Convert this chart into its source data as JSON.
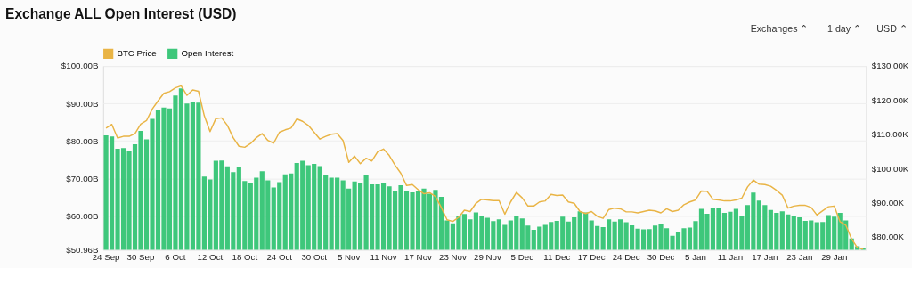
{
  "chart_data": {
    "type": "bar",
    "title": "Exchange ALL Open Interest (USD)",
    "annotations": [
      "Exchanges ⌃",
      "1 day ⌃",
      "USD ⌃"
    ],
    "categories": [
      "24 Sep",
      null,
      null,
      null,
      null,
      null,
      "30 Sep",
      null,
      null,
      null,
      null,
      null,
      "6 Oct",
      null,
      null,
      null,
      null,
      null,
      "12 Oct",
      null,
      null,
      null,
      null,
      null,
      "18 Oct",
      null,
      null,
      null,
      null,
      null,
      "24 Oct",
      null,
      null,
      null,
      null,
      null,
      "30 Oct",
      null,
      null,
      null,
      null,
      null,
      "5 Nov",
      null,
      null,
      null,
      null,
      null,
      "11 Nov",
      null,
      null,
      null,
      null,
      null,
      "17 Nov",
      null,
      null,
      null,
      null,
      null,
      "23 Nov",
      null,
      null,
      null,
      null,
      null,
      "29 Nov",
      null,
      null,
      null,
      null,
      null,
      "5 Dec",
      null,
      null,
      null,
      null,
      null,
      "11 Dec",
      null,
      null,
      null,
      null,
      null,
      "17 Dec",
      null,
      null,
      null,
      null,
      null,
      "24 Dec",
      null,
      null,
      null,
      null,
      null,
      "30 Dec",
      null,
      null,
      null,
      null,
      null,
      "5 Jan",
      null,
      null,
      null,
      null,
      null,
      "11 Jan",
      null,
      null,
      null,
      null,
      null,
      "17 Jan",
      null,
      null,
      null,
      null,
      null,
      "23 Jan",
      null,
      null,
      null,
      null,
      null,
      "29 Jan",
      null,
      null,
      null,
      null,
      null
    ],
    "series": [
      {
        "name": "BTC Price",
        "type": "line",
        "axis": "y2",
        "color": "#e9b445",
        "values": [
          111.8,
          112.9,
          108.9,
          109.4,
          109.4,
          110.2,
          113.0,
          114.0,
          117.4,
          119.8,
          122.0,
          122.5,
          123.6,
          124.2,
          121.4,
          123.0,
          122.6,
          115.4,
          110.8,
          114.6,
          114.8,
          112.6,
          109.0,
          106.5,
          106.2,
          107.3,
          109.0,
          110.2,
          108.2,
          107.4,
          110.6,
          111.3,
          111.8,
          114.5,
          113.8,
          112.6,
          110.6,
          108.6,
          109.4,
          110.0,
          110.2,
          108.2,
          101.8,
          103.6,
          101.4,
          103.0,
          102.2,
          104.9,
          105.7,
          103.8,
          101.0,
          98.6,
          95.0,
          95.3,
          93.8,
          92.6,
          92.9,
          91.8,
          88.6,
          85.0,
          84.5,
          85.7,
          87.8,
          87.4,
          89.8,
          91.0,
          90.8,
          90.6,
          90.6,
          86.6,
          90.2,
          93.0,
          91.4,
          89.0,
          89.0,
          90.2,
          90.5,
          92.4,
          92.1,
          92.2,
          90.2,
          89.8,
          87.4,
          86.8,
          87.4,
          86.0,
          85.4,
          88.0,
          88.4,
          88.2,
          87.3,
          87.3,
          87.0,
          87.4,
          87.8,
          87.6,
          87.0,
          88.2,
          87.4,
          87.8,
          89.4,
          90.2,
          90.8,
          93.4,
          93.3,
          91.0,
          90.8,
          90.5,
          90.5,
          90.8,
          91.3,
          94.6,
          96.6,
          95.4,
          95.3,
          94.8,
          93.6,
          92.2,
          88.4,
          89.0,
          89.2,
          89.2,
          88.6,
          86.4,
          87.6,
          88.8,
          89.0,
          84.4,
          83.4,
          79.4,
          76.8,
          76.4
        ]
      },
      {
        "name": "Open Interest",
        "type": "bar",
        "color": "#3ec77b",
        "values": [
          81.5,
          81.2,
          77.9,
          78.1,
          77.2,
          79.1,
          82.7,
          80.4,
          85.9,
          88.4,
          88.9,
          88.7,
          92.1,
          94.0,
          90.0,
          90.4,
          90.2,
          70.5,
          69.7,
          74.7,
          74.8,
          73.2,
          71.7,
          73.1,
          69.3,
          68.7,
          70.2,
          71.9,
          69.5,
          67.6,
          69.0,
          71.1,
          71.3,
          74.1,
          74.7,
          73.5,
          73.9,
          73.3,
          70.9,
          70.2,
          70.2,
          69.5,
          67.3,
          69.2,
          68.8,
          70.8,
          68.4,
          68.4,
          68.9,
          67.9,
          66.7,
          68.2,
          66.5,
          66.3,
          66.6,
          67.3,
          65.9,
          66.9,
          65.1,
          58.8,
          58.0,
          59.9,
          60.5,
          59.1,
          60.9,
          59.9,
          59.5,
          58.6,
          59.1,
          57.6,
          58.8,
          59.9,
          59.3,
          57.4,
          56.3,
          57.1,
          57.6,
          58.4,
          58.7,
          59.8,
          58.5,
          59.6,
          61.2,
          60.9,
          58.8,
          57.3,
          57.0,
          59.1,
          58.5,
          59.1,
          58.3,
          57.5,
          56.6,
          56.4,
          56.5,
          57.4,
          57.7,
          56.7,
          54.7,
          55.6,
          56.7,
          56.9,
          58.6,
          61.9,
          60.6,
          62.0,
          62.1,
          60.8,
          61.1,
          61.9,
          60.1,
          62.9,
          66.2,
          64.1,
          62.9,
          61.6,
          60.8,
          61.2,
          60.4,
          60.1,
          59.6,
          58.7,
          58.8,
          58.3,
          58.4,
          60.2,
          59.8,
          60.8,
          58.8,
          54.0,
          51.9,
          51.4
        ]
      }
    ],
    "ylim": [
      50.96,
      100
    ],
    "yticks": [
      {
        "value": 50.96,
        "label": "$50.96B"
      },
      {
        "value": 60,
        "label": "$60.00B"
      },
      {
        "value": 70,
        "label": "$70.00B"
      },
      {
        "value": 80,
        "label": "$80.00B"
      },
      {
        "value": 90,
        "label": "$90.00B"
      },
      {
        "value": 100,
        "label": "$100.00B"
      }
    ],
    "y2lim": [
      76.2,
      130
    ],
    "y2ticks": [
      {
        "value": 80,
        "label": "$80.00K"
      },
      {
        "value": 90,
        "label": "$90.00K"
      },
      {
        "value": 100,
        "label": "$100.00K"
      },
      {
        "value": 110,
        "label": "$110.00K"
      },
      {
        "value": 120,
        "label": "$120.00K"
      },
      {
        "value": 130,
        "label": "$130.00K"
      }
    ],
    "grid": "y",
    "legend": "top"
  }
}
